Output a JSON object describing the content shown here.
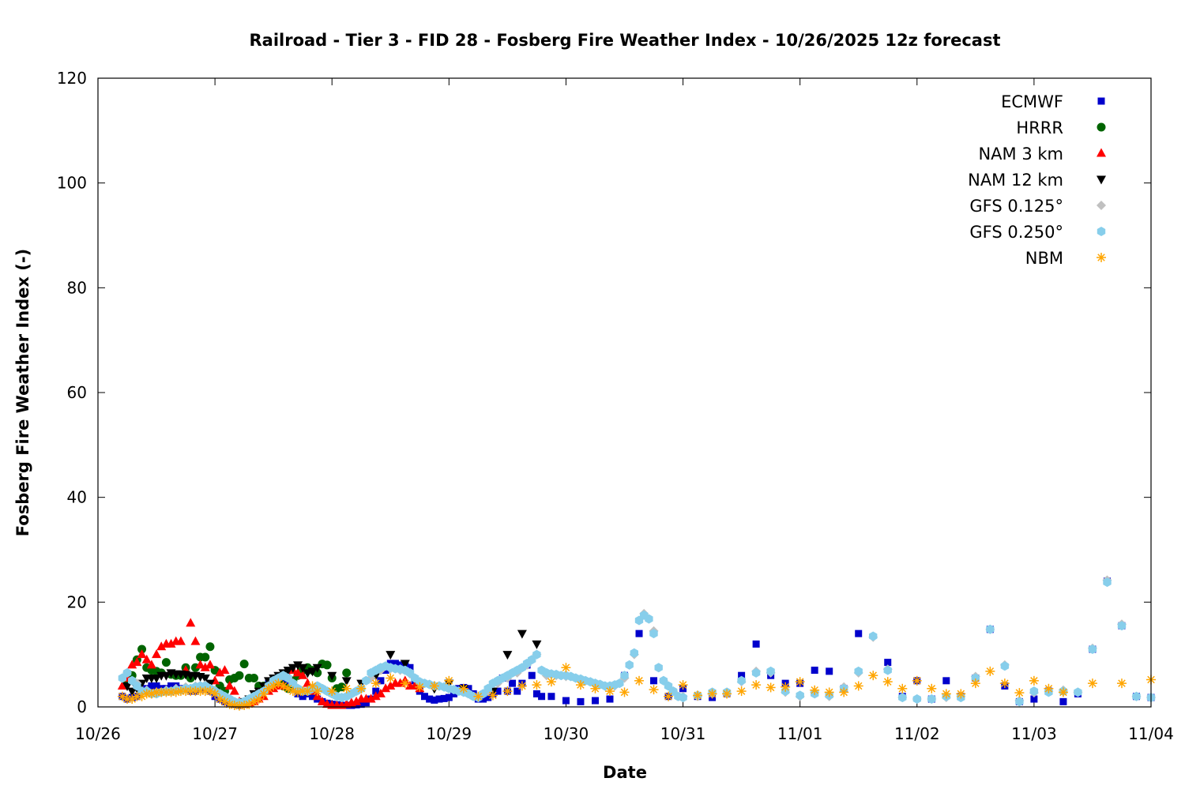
{
  "chart_data": {
    "type": "scatter",
    "title": "Railroad - Tier 3 - FID 28 - Fosberg Fire Weather Index - 10/26/2025 12z forecast",
    "xlabel": "Date",
    "ylabel": "Fosberg Fire Weather Index (-)",
    "xlim": [
      "2025-10-26 00:00",
      "2025-11-04 00:00"
    ],
    "ylim": [
      0,
      120
    ],
    "yticks": [
      0,
      20,
      40,
      60,
      80,
      100,
      120
    ],
    "xticks": [
      {
        "date": "2025-10-26 00:00",
        "label": "10/26"
      },
      {
        "date": "2025-10-27 00:00",
        "label": "10/27"
      },
      {
        "date": "2025-10-28 00:00",
        "label": "10/28"
      },
      {
        "date": "2025-10-29 00:00",
        "label": "10/29"
      },
      {
        "date": "2025-10-30 00:00",
        "label": "10/30"
      },
      {
        "date": "2025-10-31 00:00",
        "label": "10/31"
      },
      {
        "date": "2025-11-01 00:00",
        "label": "11/01"
      },
      {
        "date": "2025-11-02 00:00",
        "label": "11/02"
      },
      {
        "date": "2025-11-03 00:00",
        "label": "11/03"
      },
      {
        "date": "2025-11-04 00:00",
        "label": "11/04"
      }
    ],
    "grid": false,
    "legend_position": "top-right",
    "series": [
      {
        "name": "ECMWF",
        "marker": "square",
        "color": "#0000cc",
        "segments": [
          {
            "start": "2025-10-26 05:00",
            "step_hours": 1,
            "values": [
              2,
              1.5,
              1.8,
              2,
              3,
              3.5,
              4,
              4,
              3.5,
              3.5,
              4,
              4,
              3.5,
              3.5,
              3,
              3,
              3.5,
              3.5,
              3,
              2,
              1.5,
              1,
              0.8,
              0.5,
              0.3,
              0.5,
              1,
              1.5,
              2.5,
              3.5,
              4.5,
              5,
              5.5,
              5,
              4.5,
              4,
              2.5,
              2,
              2.5,
              2,
              1.5,
              1,
              0.7,
              0.5,
              0.4,
              0.3,
              0.3,
              0.3,
              0.4,
              0.5,
              0.8,
              1.5,
              3,
              5,
              7,
              8.3,
              8.3,
              8,
              7.8,
              7.5,
              5,
              3,
              2,
              1.5,
              1.3,
              1.5,
              1.6,
              1.8,
              2.5,
              3.5,
              3.7,
              3.5,
              2.5,
              1.5,
              1.5,
              1.8,
              2.5,
              3,
              5.5,
              3,
              4.5,
              3,
              4.5,
              8,
              6,
              2.5,
              2
            ]
          },
          {
            "start": "2025-10-29 21:00",
            "step_hours": 3,
            "values": [
              2,
              1.2,
              1,
              1.2,
              1.5,
              6,
              14,
              5,
              2,
              3.5,
              2,
              1.8,
              2.5,
              6,
              12,
              6,
              4.5,
              4.5,
              7,
              6.8,
              3.5,
              14,
              null,
              8.5,
              2,
              5,
              1.5,
              5,
              2,
              5.5,
              14.8,
              4,
              1,
              1.5,
              3,
              1,
              2.5,
              11,
              24,
              15.5,
              2,
              1.8
            ]
          }
        ]
      },
      {
        "name": "HRRR",
        "marker": "circle",
        "color": "#006400",
        "segments": [
          {
            "start": "2025-10-26 06:00",
            "step_hours": 1,
            "values": [
              5,
              6,
              9,
              11,
              7.5,
              7,
              6.8,
              6.5,
              8.5,
              6.2,
              6,
              6,
              7.5,
              5.5,
              7.5,
              9.5,
              9.5,
              11.5,
              7,
              4,
              3,
              5.2,
              5.5,
              6,
              8.2,
              5.5,
              5.5,
              4,
              4,
              4,
              4.5,
              5,
              4,
              3.5,
              5,
              6,
              7,
              7.5,
              7,
              6.5,
              8.2,
              8,
              5.5,
              3.5,
              3.8,
              6.5
            ]
          }
        ]
      },
      {
        "name": "NAM 3 km",
        "marker": "triangle-up",
        "color": "#ff0000",
        "segments": [
          {
            "start": "2025-10-26 05:00",
            "step_hours": 1,
            "values": [
              4,
              5.5,
              8,
              8.5,
              10,
              9,
              8,
              10,
              11.5,
              12,
              12,
              12.5,
              12.5,
              7,
              16,
              12.5,
              8,
              7.5,
              8,
              5,
              6.5,
              7,
              4,
              3,
              1,
              0.5,
              0.8,
              1,
              1.5,
              2,
              3,
              3.5,
              4,
              4,
              6,
              7,
              6.5,
              6,
              4.5,
              3,
              2,
              1,
              0.5,
              0.3,
              0.3,
              0.3,
              0.5,
              0.8,
              1,
              1.5,
              1.5,
              1.5,
              2,
              2.5,
              3.5,
              4,
              4.5,
              4.5,
              5,
              4,
              4,
              3.5
            ]
          }
        ]
      },
      {
        "name": "NAM 12 km",
        "marker": "triangle-down",
        "color": "#000000",
        "segments": [
          {
            "start": "2025-10-26 06:00",
            "step_hours": 1,
            "values": [
              4,
              3,
              3.5,
              4.5,
              5.5,
              5.5,
              5.5,
              6,
              6,
              6.5,
              6.3,
              6.3,
              6.2,
              6,
              6,
              5.8,
              5.5,
              4.5,
              3,
              2,
              1.5,
              1,
              0.8,
              0.5,
              1,
              1.5,
              2.5,
              3,
              4,
              5,
              5.5,
              6,
              6.5,
              7,
              7.5,
              8,
              7.5,
              6.5,
              6.8,
              7.5
            ]
          },
          {
            "start": "2025-10-28 00:00",
            "step_hours": 3,
            "values": [
              6,
              5,
              4.5,
              6,
              10,
              8.3,
              4.5,
              3.5,
              4.5,
              3.5,
              1.8,
              3,
              10,
              14,
              12
            ]
          }
        ]
      },
      {
        "name": "GFS 0.125°",
        "marker": "diamond",
        "color": "#c0c0c0",
        "segments": [
          {
            "start": "2025-10-26 06:00",
            "step_hours": 2,
            "values": [
              6.5,
              4.5,
              3.2,
              2.8,
              3.2,
              3.5,
              3.8,
              4,
              4.2,
              3.2,
              2,
              1,
              1,
              2,
              3,
              5,
              6,
              4.5,
              3,
              3.5,
              3.5,
              2.5,
              1.8,
              2.5,
              3.5,
              5.5,
              7,
              7.3,
              7,
              6.3,
              4.8,
              4.3,
              4,
              3.5,
              3,
              2.5,
              1.8,
              3,
              4.5,
              5.5,
              6.5,
              8,
              10,
              6,
              6,
              5.8,
              5.5,
              5,
              4.5,
              4,
              4,
              5.5,
              10,
              17.8,
              14.5,
              5,
              3,
              2
            ]
          },
          {
            "start": "2025-10-31 03:00",
            "step_hours": 3,
            "values": [
              2,
              2.5,
              2.5,
              4.8,
              6.8,
              6.5,
              2.8,
              2,
              2.8,
              2,
              3.8,
              6.5,
              13.3,
              7.2,
              1.8,
              1.5,
              1.5,
              1.8,
              2,
              5.8,
              14.8,
              8,
              1.2,
              2.7,
              3,
              3.2,
              2.8,
              11.2,
              24.2,
              15.8,
              2,
              1.8
            ]
          }
        ]
      },
      {
        "name": "GFS 0.250°",
        "marker": "hexagon",
        "color": "#87ceeb",
        "segments": [
          {
            "start": "2025-10-26 05:00",
            "step_hours": 1,
            "values": [
              5.5,
              6.5,
              5,
              4,
              3,
              3,
              2.5,
              2.5,
              2.8,
              3,
              3,
              3.2,
              3.2,
              3.5,
              3.5,
              3.8,
              4,
              4,
              3.5,
              3,
              2.5,
              2,
              1.5,
              1,
              0.8,
              1,
              1.5,
              2,
              2.5,
              3,
              4,
              5,
              5.5,
              6,
              5.5,
              4.5,
              3.5,
              3,
              3,
              3.5,
              4,
              3.5,
              3,
              2.5,
              2,
              1.8,
              2,
              2.5,
              3,
              3.5,
              5,
              6.5,
              7,
              7.5,
              7.8,
              7.5,
              7.3,
              7.2,
              7,
              6.5,
              5.5,
              4.8,
              4.5,
              4.3,
              4,
              4,
              3.8,
              3.5,
              3.3,
              3,
              2.8,
              2.5,
              2,
              1.8,
              2.5,
              3.5,
              4.5,
              5,
              5.5,
              6,
              6.5,
              7,
              7.5,
              8.3,
              9,
              10,
              7,
              6.5,
              6.3,
              6.2,
              6,
              6,
              5.8,
              5.5,
              5.3,
              5,
              4.8,
              4.5,
              4.3,
              4,
              4,
              4.2,
              4.5,
              6,
              8,
              10.3,
              16.5,
              17.5,
              16.8,
              14,
              7.5,
              5,
              4,
              3,
              2,
              1.8
            ]
          },
          {
            "start": "2025-10-31 03:00",
            "step_hours": 3,
            "values": [
              2.2,
              2.8,
              2.8,
              5,
              6.5,
              6.8,
              3,
              2.2,
              2.5,
              2.2,
              3.5,
              6.8,
              13.5,
              7,
              1.8,
              1.5,
              1.5,
              2,
              1.8,
              5.5,
              14.8,
              7.8,
              1,
              3,
              2.8,
              3,
              2.8,
              11,
              23.8,
              15.5,
              2,
              1.8
            ]
          }
        ]
      },
      {
        "name": "NBM",
        "marker": "asterisk",
        "color": "#ffa500",
        "segments": [
          {
            "start": "2025-10-26 05:00",
            "step_hours": 1,
            "values": [
              2,
              1.5,
              1.5,
              2,
              2,
              2.5,
              2.5,
              2.8,
              2.8,
              2.8,
              2.8,
              2.8,
              3,
              3,
              3,
              3,
              3,
              3,
              3,
              2.5,
              1.5,
              1,
              0.5,
              0.3,
              0.2,
              0.3,
              0.5,
              1,
              1.5,
              2.5,
              3.5,
              4,
              4.5,
              4,
              3.5,
              3,
              2.8,
              3,
              3,
              4,
              3
            ]
          },
          {
            "start": "2025-10-28 00:00",
            "step_hours": 3,
            "values": [
              3,
              3.5,
              3.5,
              4.5,
              5.5,
              4.5,
              3.8,
              4,
              5,
              3.5,
              2,
              2.2,
              3,
              4,
              4.2,
              4.8,
              7.5,
              4.2,
              3.5,
              3,
              2.8,
              5,
              3.3,
              2,
              4.2,
              2.2,
              2.5,
              2.5,
              3,
              4.2,
              3.7,
              3.8,
              4.8,
              3.2,
              2.8,
              2.8,
              4,
              6,
              4.8,
              3.5,
              5,
              3.5,
              2.5,
              2.5,
              4.5,
              6.8,
              4.5,
              2.7,
              5,
              3.5,
              2.8,
              null,
              4.5,
              null,
              4.5,
              null,
              5.2
            ]
          }
        ]
      }
    ]
  }
}
